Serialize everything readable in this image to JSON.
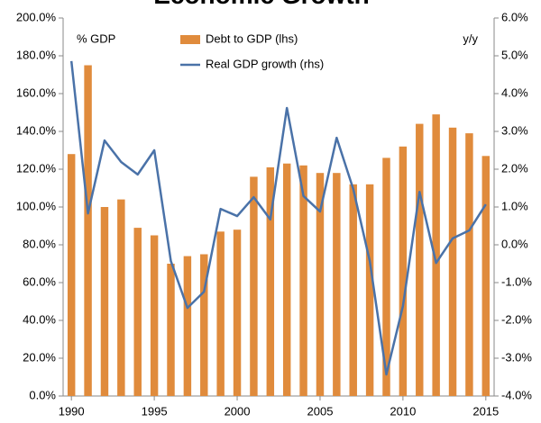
{
  "chart_data": {
    "type": "bar_line",
    "title": "Economic Growth",
    "y_label": "% GDP",
    "y2_label": "y/y",
    "x": [
      1990,
      1991,
      1992,
      1993,
      1994,
      1995,
      1996,
      1997,
      1998,
      1999,
      2000,
      2001,
      2002,
      2003,
      2004,
      2005,
      2006,
      2007,
      2008,
      2009,
      2010,
      2011,
      2012,
      2013,
      2014,
      2015
    ],
    "series": [
      {
        "name": "Debt to GDP (lhs)",
        "kind": "bar",
        "color": "#e08b3c",
        "axis": "y",
        "values": [
          128,
          175,
          100,
          104,
          89,
          85,
          70,
          74,
          75,
          87,
          88,
          116,
          121,
          123,
          122,
          118,
          118,
          112,
          112,
          126,
          132,
          144,
          149,
          142,
          139,
          127
        ]
      },
      {
        "name": "Real GDP growth (rhs)",
        "kind": "line",
        "color": "#4a72a8",
        "axis": "y2",
        "values": [
          4.86,
          0.83,
          2.76,
          2.19,
          1.86,
          2.5,
          -0.43,
          -1.67,
          -1.24,
          0.95,
          0.76,
          1.26,
          0.67,
          3.62,
          1.29,
          0.88,
          2.83,
          1.48,
          -0.43,
          -3.43,
          -1.62,
          1.4,
          -0.48,
          0.17,
          0.38,
          1.07
        ]
      }
    ],
    "xlim": [
      1989.5,
      2015.5
    ],
    "xticks": [
      1990,
      1995,
      2000,
      2005,
      2010,
      2015
    ],
    "ylim": [
      0,
      200
    ],
    "yticks": [
      {
        "value": 0,
        "label": "0.0%"
      },
      {
        "value": 20,
        "label": "20.0%"
      },
      {
        "value": 40,
        "label": "40.0%"
      },
      {
        "value": 60,
        "label": "60.0%"
      },
      {
        "value": 80,
        "label": "80.0%"
      },
      {
        "value": 100,
        "label": "100.0%"
      },
      {
        "value": 120,
        "label": "120.0%"
      },
      {
        "value": 140,
        "label": "140.0%"
      },
      {
        "value": 160,
        "label": "160.0%"
      },
      {
        "value": 180,
        "label": "180.0%"
      },
      {
        "value": 200,
        "label": "200.0%"
      }
    ],
    "y2lim": [
      -4,
      6
    ],
    "y2ticks": [
      {
        "value": -4,
        "label": "-4.0%"
      },
      {
        "value": -3,
        "label": "-3.0%"
      },
      {
        "value": -2,
        "label": "-2.0%"
      },
      {
        "value": -1,
        "label": "-1.0%"
      },
      {
        "value": 0,
        "label": "0.0%"
      },
      {
        "value": 1,
        "label": "1.0%"
      },
      {
        "value": 2,
        "label": "2.0%"
      },
      {
        "value": 3,
        "label": "3.0%"
      },
      {
        "value": 4,
        "label": "4.0%"
      },
      {
        "value": 5,
        "label": "5.0%"
      },
      {
        "value": 6,
        "label": "6.0%"
      }
    ],
    "grid": false,
    "legend": "top"
  }
}
